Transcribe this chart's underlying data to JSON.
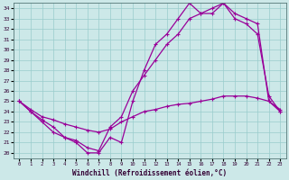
{
  "xlabel": "Windchill (Refroidissement éolien,°C)",
  "bg_color": "#cce8e8",
  "line_color": "#990099",
  "grid_color": "#99cccc",
  "x_ticks": [
    0,
    1,
    2,
    3,
    4,
    5,
    6,
    7,
    8,
    9,
    10,
    11,
    12,
    13,
    14,
    15,
    16,
    17,
    18,
    19,
    20,
    21,
    22,
    23
  ],
  "y_ticks": [
    20,
    21,
    22,
    23,
    24,
    25,
    26,
    27,
    28,
    29,
    30,
    31,
    32,
    33,
    34
  ],
  "xlim": [
    -0.5,
    23.5
  ],
  "ylim": [
    19.5,
    34.5
  ],
  "line1_x": [
    0,
    1,
    2,
    3,
    4,
    5,
    6,
    7,
    8,
    9,
    10,
    11,
    12,
    13,
    14,
    15,
    16,
    17,
    18,
    19,
    20,
    21,
    22,
    23
  ],
  "line1_y": [
    25.0,
    24.0,
    23.0,
    22.0,
    21.5,
    21.0,
    20.0,
    20.0,
    21.5,
    21.0,
    25.0,
    28.0,
    30.5,
    31.5,
    33.0,
    34.5,
    33.5,
    34.0,
    34.5,
    33.5,
    33.0,
    32.5,
    25.0,
    24.0
  ],
  "line2_x": [
    0,
    1,
    2,
    3,
    4,
    5,
    6,
    7,
    8,
    9,
    10,
    11,
    12,
    13,
    14,
    15,
    16,
    17,
    18,
    19,
    20,
    21,
    22,
    23
  ],
  "line2_y": [
    25.0,
    24.0,
    23.2,
    22.5,
    21.5,
    21.2,
    20.5,
    20.2,
    22.5,
    23.5,
    26.0,
    27.5,
    29.0,
    30.5,
    31.5,
    33.0,
    33.5,
    33.5,
    34.5,
    33.0,
    32.5,
    31.5,
    25.5,
    24.0
  ],
  "line3_x": [
    0,
    1,
    2,
    3,
    4,
    5,
    6,
    7,
    8,
    9,
    10,
    11,
    12,
    13,
    14,
    15,
    16,
    17,
    18,
    19,
    20,
    21,
    22,
    23
  ],
  "line3_y": [
    25.0,
    24.2,
    23.5,
    23.2,
    22.8,
    22.5,
    22.2,
    22.0,
    22.3,
    23.0,
    23.5,
    24.0,
    24.2,
    24.5,
    24.7,
    24.8,
    25.0,
    25.2,
    25.5,
    25.5,
    25.5,
    25.3,
    25.0,
    24.2
  ]
}
